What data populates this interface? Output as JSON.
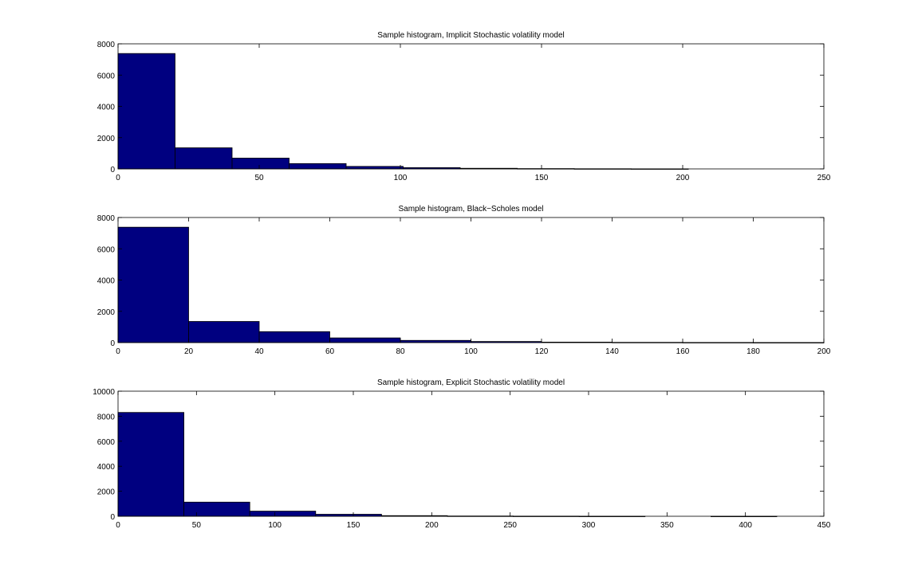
{
  "chart_data": [
    {
      "type": "bar",
      "title": "Sample histogram, Implicit Stochastic volatility model",
      "xlabel": "",
      "ylabel": "",
      "xlim": [
        0,
        250
      ],
      "ylim": [
        0,
        8000
      ],
      "xticks": [
        0,
        50,
        100,
        150,
        200,
        250
      ],
      "yticks": [
        0,
        2000,
        4000,
        6000,
        8000
      ],
      "bin_edges": [
        0,
        20.2,
        40.4,
        60.6,
        80.8,
        101,
        121.2,
        141.4,
        161.6,
        181.8,
        202
      ],
      "values": [
        7380,
        1350,
        690,
        340,
        160,
        80,
        40,
        20,
        10,
        5
      ],
      "bar_color": "#000080",
      "edge_color": "#000000",
      "grid": false
    },
    {
      "type": "bar",
      "title": "Sample histogram, Black−Scholes model",
      "xlabel": "",
      "ylabel": "",
      "xlim": [
        0,
        200
      ],
      "ylim": [
        0,
        8000
      ],
      "xticks": [
        0,
        20,
        40,
        60,
        80,
        100,
        120,
        140,
        160,
        180,
        200
      ],
      "yticks": [
        0,
        2000,
        4000,
        6000,
        8000
      ],
      "bin_edges": [
        0,
        20,
        40,
        60,
        80,
        100,
        120,
        140,
        160,
        180,
        200
      ],
      "values": [
        7380,
        1350,
        700,
        300,
        140,
        70,
        30,
        15,
        8,
        4
      ],
      "bar_color": "#000080",
      "edge_color": "#000000",
      "grid": false
    },
    {
      "type": "bar",
      "title": "Sample histogram, Explicit Stochastic volatility model",
      "xlabel": "",
      "ylabel": "",
      "xlim": [
        0,
        450
      ],
      "ylim": [
        0,
        10000
      ],
      "xticks": [
        0,
        50,
        100,
        150,
        200,
        250,
        300,
        350,
        400,
        450
      ],
      "yticks": [
        0,
        2000,
        4000,
        6000,
        8000,
        10000
      ],
      "bin_edges": [
        0,
        42,
        84,
        126,
        168,
        210,
        252,
        294,
        336,
        378,
        420
      ],
      "values": [
        8300,
        1130,
        410,
        160,
        50,
        20,
        10,
        5,
        0,
        3
      ],
      "bar_color": "#000080",
      "edge_color": "#000000",
      "grid": false
    }
  ]
}
